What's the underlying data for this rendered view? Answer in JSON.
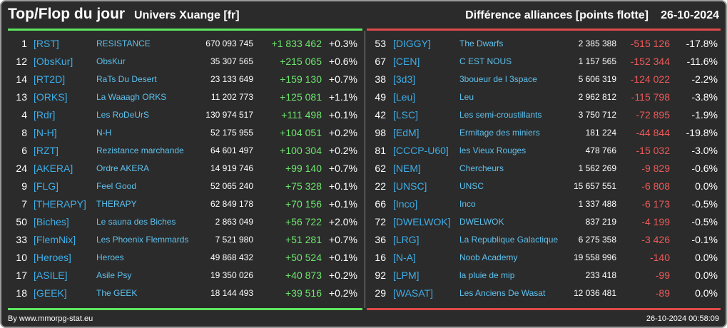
{
  "header": {
    "title": "Top/Flop du jour",
    "universe": "Univers Xuange [fr]",
    "subtitle": "Différence alliances [points flotte]",
    "date": "26-10-2024"
  },
  "colors": {
    "background": "#2b2b2b",
    "top_accent": "#5ee65e",
    "flop_accent": "#e04a4a",
    "tag": "#3eaee8",
    "name": "#5ec1ee"
  },
  "top": [
    {
      "rank": "1",
      "tag": "[RST]",
      "name": "RESISTANCE",
      "points": "670 093 745",
      "diff": "+1 833 462",
      "pct": "+0.3%"
    },
    {
      "rank": "12",
      "tag": "[ObsKur]",
      "name": "ObsKur",
      "points": "35 307 565",
      "diff": "+215 065",
      "pct": "+0.6%"
    },
    {
      "rank": "14",
      "tag": "[RT2D]",
      "name": "RaTs Du Desert",
      "points": "23 133 649",
      "diff": "+159 130",
      "pct": "+0.7%"
    },
    {
      "rank": "13",
      "tag": "[ORKS]",
      "name": "La Waaagh ORKS",
      "points": "11 202 773",
      "diff": "+125 081",
      "pct": "+1.1%"
    },
    {
      "rank": "4",
      "tag": "[Rdr]",
      "name": "Les RoDeUrS",
      "points": "130 974 517",
      "diff": "+111 498",
      "pct": "+0.1%"
    },
    {
      "rank": "8",
      "tag": "[N-H]",
      "name": "N-H",
      "points": "52 175 955",
      "diff": "+104 051",
      "pct": "+0.2%"
    },
    {
      "rank": "6",
      "tag": "[RZT]",
      "name": "Rezistance marchande",
      "points": "64 601 497",
      "diff": "+100 304",
      "pct": "+0.2%"
    },
    {
      "rank": "24",
      "tag": "[AKERA]",
      "name": "Ordre AKERA",
      "points": "14 919 746",
      "diff": "+99 140",
      "pct": "+0.7%"
    },
    {
      "rank": "9",
      "tag": "[FLG]",
      "name": "Feel Good",
      "points": "52 065 240",
      "diff": "+75 328",
      "pct": "+0.1%"
    },
    {
      "rank": "7",
      "tag": "[THERAPY]",
      "name": "THERAPY",
      "points": "62 849 178",
      "diff": "+70 156",
      "pct": "+0.1%"
    },
    {
      "rank": "50",
      "tag": "[Biches]",
      "name": "Le sauna des Biches",
      "points": "2 863 049",
      "diff": "+56 722",
      "pct": "+2.0%"
    },
    {
      "rank": "33",
      "tag": "[FlemNix]",
      "name": "Les Phoenix Flemmards",
      "points": "7 521 980",
      "diff": "+51 281",
      "pct": "+0.7%"
    },
    {
      "rank": "10",
      "tag": "[Heroes]",
      "name": "Heroes",
      "points": "49 868 432",
      "diff": "+50 524",
      "pct": "+0.1%"
    },
    {
      "rank": "17",
      "tag": "[ASILE]",
      "name": "Asile Psy",
      "points": "19 350 026",
      "diff": "+40 873",
      "pct": "+0.2%"
    },
    {
      "rank": "18",
      "tag": "[GEEK]",
      "name": "The GEEK",
      "points": "18 144 493",
      "diff": "+39 516",
      "pct": "+0.2%"
    }
  ],
  "flop": [
    {
      "rank": "53",
      "tag": "[DIGGY]",
      "name": "The Dwarfs",
      "points": "2 385 388",
      "diff": "-515 126",
      "pct": "-17.8%"
    },
    {
      "rank": "67",
      "tag": "[CEN]",
      "name": "C EST NOUS",
      "points": "1 157 565",
      "diff": "-152 344",
      "pct": "-11.6%"
    },
    {
      "rank": "38",
      "tag": "[3d3]",
      "name": "3boueur de l 3space",
      "points": "5 606 319",
      "diff": "-124 022",
      "pct": "-2.2%"
    },
    {
      "rank": "49",
      "tag": "[Leu]",
      "name": "Leu",
      "points": "2 962 812",
      "diff": "-115 798",
      "pct": "-3.8%"
    },
    {
      "rank": "42",
      "tag": "[LSC]",
      "name": "Les semi-croustillants",
      "points": "3 750 712",
      "diff": "-72 895",
      "pct": "-1.9%"
    },
    {
      "rank": "98",
      "tag": "[EdM]",
      "name": "Ermitage des miniers",
      "points": "181 224",
      "diff": "-44 844",
      "pct": "-19.8%"
    },
    {
      "rank": "81",
      "tag": "[CCCP-U60]",
      "name": "les Vieux Rouges",
      "points": "478 766",
      "diff": "-15 032",
      "pct": "-3.0%"
    },
    {
      "rank": "62",
      "tag": "[NEM]",
      "name": "Chercheurs",
      "points": "1 562 269",
      "diff": "-9 829",
      "pct": "-0.6%"
    },
    {
      "rank": "22",
      "tag": "[UNSC]",
      "name": "UNSC",
      "points": "15 657 551",
      "diff": "-6 808",
      "pct": "0.0%"
    },
    {
      "rank": "66",
      "tag": "[Inco]",
      "name": "Inco",
      "points": "1 337 488",
      "diff": "-6 173",
      "pct": "-0.5%"
    },
    {
      "rank": "72",
      "tag": "[DWELWOK]",
      "name": "DWELWOK",
      "points": "837 219",
      "diff": "-4 199",
      "pct": "-0.5%"
    },
    {
      "rank": "36",
      "tag": "[LRG]",
      "name": "La Republique Galactique",
      "points": "6 275 358",
      "diff": "-3 426",
      "pct": "-0.1%"
    },
    {
      "rank": "16",
      "tag": "[N-A]",
      "name": "Noob Academy",
      "points": "19 558 996",
      "diff": "-140",
      "pct": "0.0%"
    },
    {
      "rank": "92",
      "tag": "[LPM]",
      "name": "la pluie de mip",
      "points": "233 418",
      "diff": "-99",
      "pct": "0.0%"
    },
    {
      "rank": "29",
      "tag": "[WASAT]",
      "name": "Les Anciens De Wasat",
      "points": "12 036 481",
      "diff": "-89",
      "pct": "0.0%"
    }
  ],
  "footer": {
    "source": "By www.mmorpg-stat.eu",
    "timestamp": "26-10-2024 00:58:09"
  }
}
